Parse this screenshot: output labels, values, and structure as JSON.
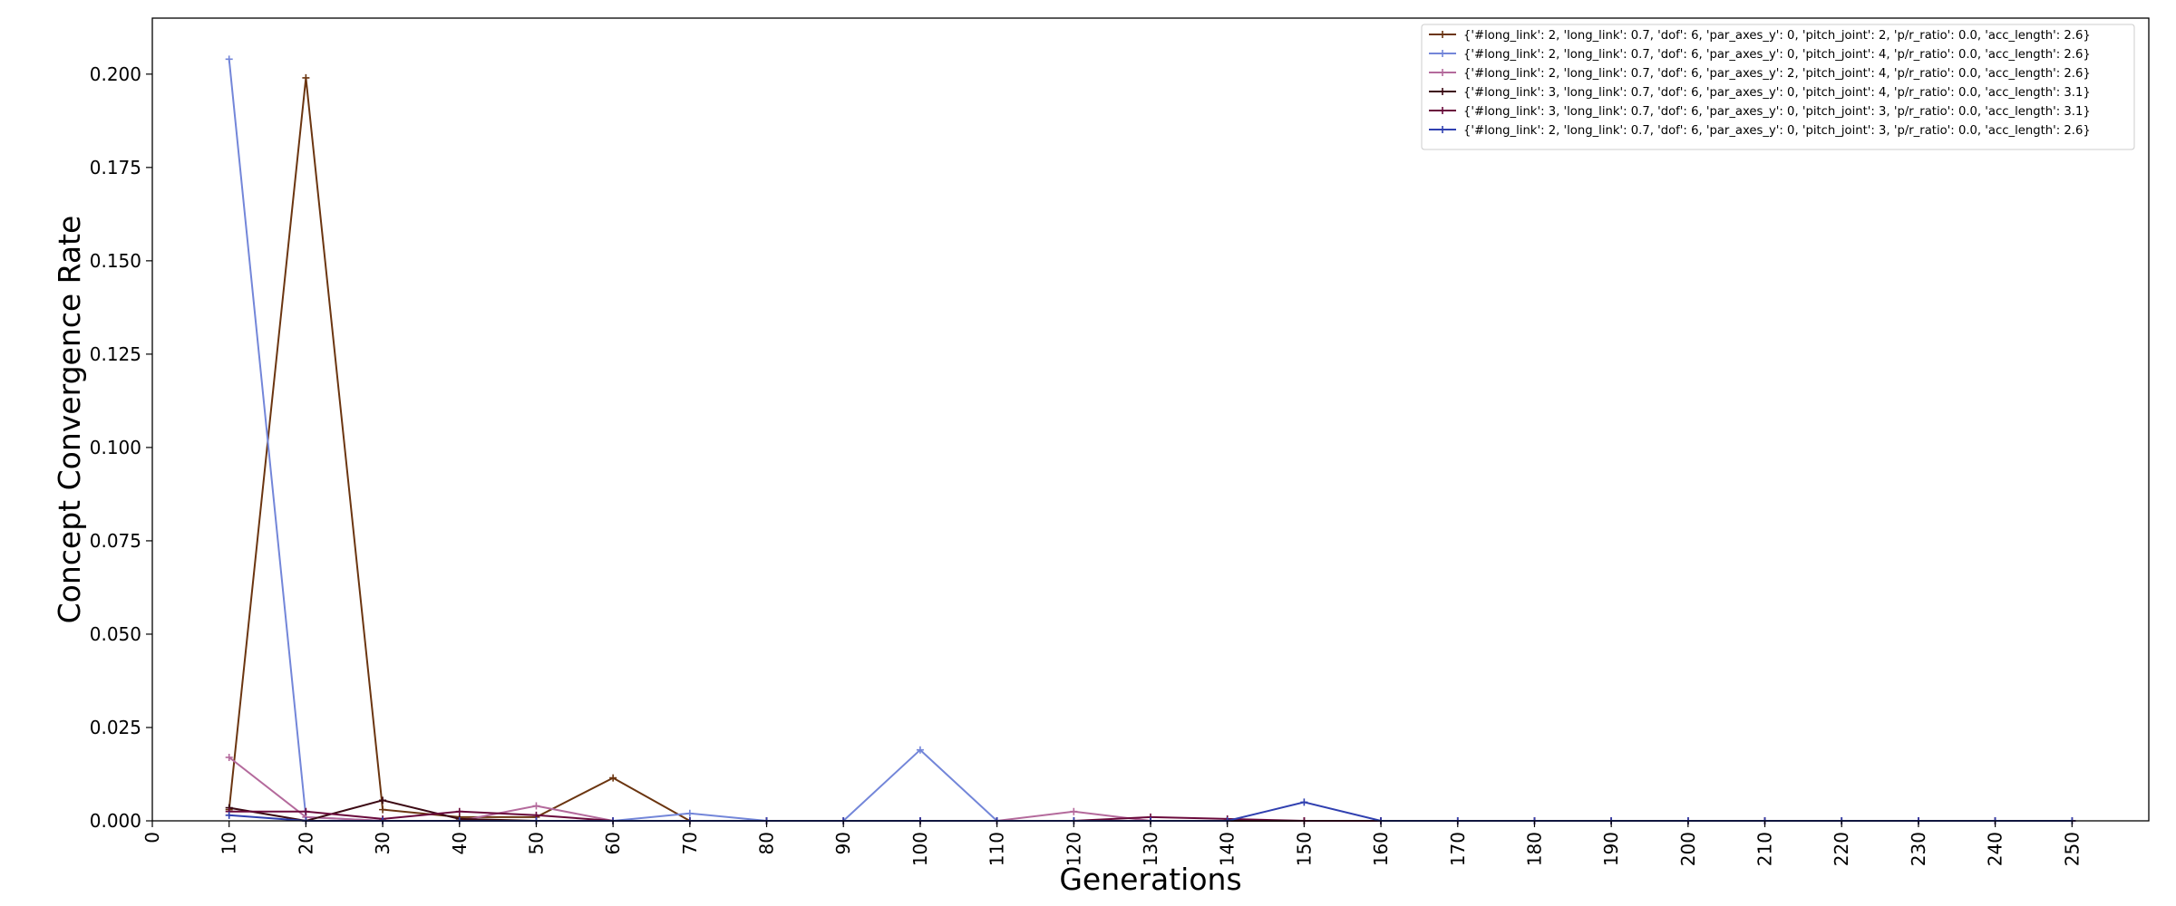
{
  "chart_data": {
    "type": "line",
    "xlabel": "Generations",
    "ylabel": "Concept Convergence Rate",
    "xlim": [
      0,
      260
    ],
    "ylim": [
      0,
      0.215
    ],
    "x_ticks": [
      0,
      10,
      20,
      30,
      40,
      50,
      60,
      70,
      80,
      90,
      100,
      110,
      120,
      130,
      140,
      150,
      160,
      170,
      180,
      190,
      200,
      210,
      220,
      230,
      240,
      250
    ],
    "x_tick_labels": [
      "0",
      "10",
      "20",
      "30",
      "40",
      "50",
      "60",
      "70",
      "80",
      "90",
      "100",
      "110",
      "120",
      "130",
      "140",
      "150",
      "160",
      "170",
      "180",
      "190",
      "200",
      "210",
      "220",
      "230",
      "240",
      "250"
    ],
    "y_ticks": [
      0.0,
      0.025,
      0.05,
      0.075,
      0.1,
      0.125,
      0.15,
      0.175,
      0.2
    ],
    "y_tick_labels": [
      "0.000",
      "0.025",
      "0.050",
      "0.075",
      "0.100",
      "0.125",
      "0.150",
      "0.175",
      "0.200"
    ],
    "grid": false,
    "legend_position": "top-right",
    "x": [
      10,
      20,
      30,
      40,
      50,
      60,
      70,
      80,
      90,
      100,
      110,
      120,
      130,
      140,
      150,
      160,
      170,
      180,
      190,
      200,
      210,
      220,
      230,
      240,
      250
    ],
    "series": [
      {
        "name": "{'#long_link': 2, 'long_link': 0.7, 'dof': 6, 'par_axes_y': 0, 'pitch_joint': 2, 'p/r_ratio': 0.0, 'acc_length': 2.6}",
        "color": "#6b3510",
        "values": [
          0.003,
          0.199,
          0.003,
          0.001,
          0.001,
          0.0115,
          0.0,
          0.0,
          0.0,
          0.0,
          0.0,
          0.0,
          0.0,
          0.0,
          0.0,
          0.0,
          0.0,
          0.0,
          0.0,
          0.0,
          0.0,
          0.0,
          0.0,
          0.0,
          0.0
        ]
      },
      {
        "name": "{'#long_link': 2, 'long_link': 0.7, 'dof': 6, 'par_axes_y': 0, 'pitch_joint': 4, 'p/r_ratio': 0.0, 'acc_length': 2.6}",
        "color": "#7386d9",
        "values": [
          0.204,
          0.001,
          0.0,
          0.0,
          0.0,
          0.0,
          0.002,
          0.0,
          0.0,
          0.019,
          0.0,
          0.0,
          0.0,
          0.0,
          0.0,
          0.0,
          0.0,
          0.0,
          0.0,
          0.0,
          0.0,
          0.0,
          0.0,
          0.0,
          0.0
        ]
      },
      {
        "name": "{'#long_link': 2, 'long_link': 0.7, 'dof': 6, 'par_axes_y': 2, 'pitch_joint': 4, 'p/r_ratio': 0.0, 'acc_length': 2.6}",
        "color": "#b46a9c",
        "values": [
          0.017,
          0.001,
          0.0,
          0.0,
          0.004,
          0.0,
          0.0,
          0.0,
          0.0,
          0.0,
          0.0,
          0.0025,
          0.0,
          0.0,
          0.0,
          0.0,
          0.0,
          0.0,
          0.0,
          0.0,
          0.0,
          0.0,
          0.0,
          0.0,
          0.0
        ]
      },
      {
        "name": "{'#long_link': 3, 'long_link': 0.7, 'dof': 6, 'par_axes_y': 0, 'pitch_joint': 4, 'p/r_ratio': 0.0, 'acc_length': 3.1}",
        "color": "#3c0a14",
        "values": [
          0.0035,
          0.0,
          0.0055,
          0.0005,
          0.0,
          0.0,
          0.0,
          0.0,
          0.0,
          0.0,
          0.0,
          0.0,
          0.0,
          0.0,
          0.0,
          0.0,
          0.0,
          0.0,
          0.0,
          0.0,
          0.0,
          0.0,
          0.0,
          0.0,
          0.0
        ]
      },
      {
        "name": "{'#long_link': 3, 'long_link': 0.7, 'dof': 6, 'par_axes_y': 0, 'pitch_joint': 3, 'p/r_ratio': 0.0, 'acc_length': 3.1}",
        "color": "#6a0a3c",
        "values": [
          0.0025,
          0.0025,
          0.0005,
          0.0025,
          0.0015,
          0.0,
          0.0,
          0.0,
          0.0,
          0.0,
          0.0,
          0.0,
          0.001,
          0.0005,
          0.0,
          0.0,
          0.0,
          0.0,
          0.0,
          0.0,
          0.0,
          0.0,
          0.0,
          0.0,
          0.0
        ]
      },
      {
        "name": "{'#long_link': 2, 'long_link': 0.7, 'dof': 6, 'par_axes_y': 0, 'pitch_joint': 3, 'p/r_ratio': 0.0, 'acc_length': 2.6}",
        "color": "#3040b0",
        "values": [
          0.0015,
          0.0,
          0.0,
          0.0,
          0.0,
          0.0,
          0.0,
          0.0,
          0.0,
          0.0,
          0.0,
          0.0,
          0.0,
          0.0,
          0.005,
          0.0,
          0.0,
          0.0,
          0.0,
          0.0,
          0.0,
          0.0,
          0.0,
          0.0,
          0.0
        ]
      }
    ]
  }
}
